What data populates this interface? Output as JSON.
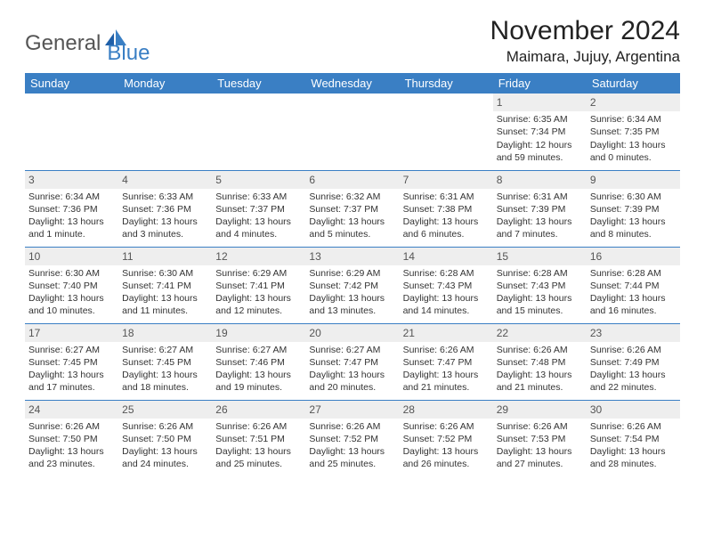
{
  "brand": {
    "general": "General",
    "blue": "Blue"
  },
  "title": "November 2024",
  "location": "Maimara, Jujuy, Argentina",
  "colors": {
    "header_bg": "#3a7fc4",
    "header_fg": "#ffffff",
    "rule": "#3a7fc4",
    "daynum_bg": "#eeeeee",
    "page_bg": "#ffffff",
    "text": "#222222"
  },
  "weekdays": [
    "Sunday",
    "Monday",
    "Tuesday",
    "Wednesday",
    "Thursday",
    "Friday",
    "Saturday"
  ],
  "weeks": [
    [
      {
        "n": "",
        "sr": "",
        "ss": "",
        "d1": "",
        "d2": ""
      },
      {
        "n": "",
        "sr": "",
        "ss": "",
        "d1": "",
        "d2": ""
      },
      {
        "n": "",
        "sr": "",
        "ss": "",
        "d1": "",
        "d2": ""
      },
      {
        "n": "",
        "sr": "",
        "ss": "",
        "d1": "",
        "d2": ""
      },
      {
        "n": "",
        "sr": "",
        "ss": "",
        "d1": "",
        "d2": ""
      },
      {
        "n": "1",
        "sr": "Sunrise: 6:35 AM",
        "ss": "Sunset: 7:34 PM",
        "d1": "Daylight: 12 hours",
        "d2": "and 59 minutes."
      },
      {
        "n": "2",
        "sr": "Sunrise: 6:34 AM",
        "ss": "Sunset: 7:35 PM",
        "d1": "Daylight: 13 hours",
        "d2": "and 0 minutes."
      }
    ],
    [
      {
        "n": "3",
        "sr": "Sunrise: 6:34 AM",
        "ss": "Sunset: 7:36 PM",
        "d1": "Daylight: 13 hours",
        "d2": "and 1 minute."
      },
      {
        "n": "4",
        "sr": "Sunrise: 6:33 AM",
        "ss": "Sunset: 7:36 PM",
        "d1": "Daylight: 13 hours",
        "d2": "and 3 minutes."
      },
      {
        "n": "5",
        "sr": "Sunrise: 6:33 AM",
        "ss": "Sunset: 7:37 PM",
        "d1": "Daylight: 13 hours",
        "d2": "and 4 minutes."
      },
      {
        "n": "6",
        "sr": "Sunrise: 6:32 AM",
        "ss": "Sunset: 7:37 PM",
        "d1": "Daylight: 13 hours",
        "d2": "and 5 minutes."
      },
      {
        "n": "7",
        "sr": "Sunrise: 6:31 AM",
        "ss": "Sunset: 7:38 PM",
        "d1": "Daylight: 13 hours",
        "d2": "and 6 minutes."
      },
      {
        "n": "8",
        "sr": "Sunrise: 6:31 AM",
        "ss": "Sunset: 7:39 PM",
        "d1": "Daylight: 13 hours",
        "d2": "and 7 minutes."
      },
      {
        "n": "9",
        "sr": "Sunrise: 6:30 AM",
        "ss": "Sunset: 7:39 PM",
        "d1": "Daylight: 13 hours",
        "d2": "and 8 minutes."
      }
    ],
    [
      {
        "n": "10",
        "sr": "Sunrise: 6:30 AM",
        "ss": "Sunset: 7:40 PM",
        "d1": "Daylight: 13 hours",
        "d2": "and 10 minutes."
      },
      {
        "n": "11",
        "sr": "Sunrise: 6:30 AM",
        "ss": "Sunset: 7:41 PM",
        "d1": "Daylight: 13 hours",
        "d2": "and 11 minutes."
      },
      {
        "n": "12",
        "sr": "Sunrise: 6:29 AM",
        "ss": "Sunset: 7:41 PM",
        "d1": "Daylight: 13 hours",
        "d2": "and 12 minutes."
      },
      {
        "n": "13",
        "sr": "Sunrise: 6:29 AM",
        "ss": "Sunset: 7:42 PM",
        "d1": "Daylight: 13 hours",
        "d2": "and 13 minutes."
      },
      {
        "n": "14",
        "sr": "Sunrise: 6:28 AM",
        "ss": "Sunset: 7:43 PM",
        "d1": "Daylight: 13 hours",
        "d2": "and 14 minutes."
      },
      {
        "n": "15",
        "sr": "Sunrise: 6:28 AM",
        "ss": "Sunset: 7:43 PM",
        "d1": "Daylight: 13 hours",
        "d2": "and 15 minutes."
      },
      {
        "n": "16",
        "sr": "Sunrise: 6:28 AM",
        "ss": "Sunset: 7:44 PM",
        "d1": "Daylight: 13 hours",
        "d2": "and 16 minutes."
      }
    ],
    [
      {
        "n": "17",
        "sr": "Sunrise: 6:27 AM",
        "ss": "Sunset: 7:45 PM",
        "d1": "Daylight: 13 hours",
        "d2": "and 17 minutes."
      },
      {
        "n": "18",
        "sr": "Sunrise: 6:27 AM",
        "ss": "Sunset: 7:45 PM",
        "d1": "Daylight: 13 hours",
        "d2": "and 18 minutes."
      },
      {
        "n": "19",
        "sr": "Sunrise: 6:27 AM",
        "ss": "Sunset: 7:46 PM",
        "d1": "Daylight: 13 hours",
        "d2": "and 19 minutes."
      },
      {
        "n": "20",
        "sr": "Sunrise: 6:27 AM",
        "ss": "Sunset: 7:47 PM",
        "d1": "Daylight: 13 hours",
        "d2": "and 20 minutes."
      },
      {
        "n": "21",
        "sr": "Sunrise: 6:26 AM",
        "ss": "Sunset: 7:47 PM",
        "d1": "Daylight: 13 hours",
        "d2": "and 21 minutes."
      },
      {
        "n": "22",
        "sr": "Sunrise: 6:26 AM",
        "ss": "Sunset: 7:48 PM",
        "d1": "Daylight: 13 hours",
        "d2": "and 21 minutes."
      },
      {
        "n": "23",
        "sr": "Sunrise: 6:26 AM",
        "ss": "Sunset: 7:49 PM",
        "d1": "Daylight: 13 hours",
        "d2": "and 22 minutes."
      }
    ],
    [
      {
        "n": "24",
        "sr": "Sunrise: 6:26 AM",
        "ss": "Sunset: 7:50 PM",
        "d1": "Daylight: 13 hours",
        "d2": "and 23 minutes."
      },
      {
        "n": "25",
        "sr": "Sunrise: 6:26 AM",
        "ss": "Sunset: 7:50 PM",
        "d1": "Daylight: 13 hours",
        "d2": "and 24 minutes."
      },
      {
        "n": "26",
        "sr": "Sunrise: 6:26 AM",
        "ss": "Sunset: 7:51 PM",
        "d1": "Daylight: 13 hours",
        "d2": "and 25 minutes."
      },
      {
        "n": "27",
        "sr": "Sunrise: 6:26 AM",
        "ss": "Sunset: 7:52 PM",
        "d1": "Daylight: 13 hours",
        "d2": "and 25 minutes."
      },
      {
        "n": "28",
        "sr": "Sunrise: 6:26 AM",
        "ss": "Sunset: 7:52 PM",
        "d1": "Daylight: 13 hours",
        "d2": "and 26 minutes."
      },
      {
        "n": "29",
        "sr": "Sunrise: 6:26 AM",
        "ss": "Sunset: 7:53 PM",
        "d1": "Daylight: 13 hours",
        "d2": "and 27 minutes."
      },
      {
        "n": "30",
        "sr": "Sunrise: 6:26 AM",
        "ss": "Sunset: 7:54 PM",
        "d1": "Daylight: 13 hours",
        "d2": "and 28 minutes."
      }
    ]
  ]
}
